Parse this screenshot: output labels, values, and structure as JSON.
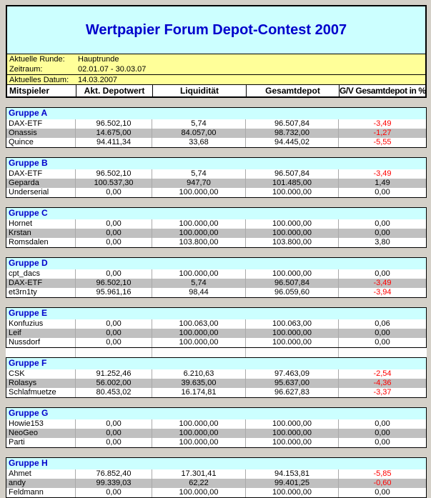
{
  "title": "Wertpapier Forum Depot-Contest 2007",
  "info": {
    "round_label": "Aktuelle Runde:",
    "round_value": "Hauptrunde",
    "period_label": "Zeitraum:",
    "period_value": "02.01.07 - 30.03.07",
    "date_label": "Aktuelles Datum:",
    "date_value": "14.03.2007"
  },
  "columns": [
    "Mitspieler",
    "Akt. Depotwert",
    "Liquidität",
    "Gesamtdepot",
    "G/V Gesamtdepot in %"
  ],
  "colors": {
    "title_blue": "#0000CC",
    "header_cyan": "#CCFFFF",
    "info_yellow": "#FFFF99",
    "stripe_silver": "#C0C0C0",
    "negative_red": "#FF0000",
    "page_gray": "#D4D0C8"
  },
  "groups": [
    {
      "name": "Gruppe A",
      "rows": [
        {
          "player": "DAX-ETF",
          "depotwert": "96.502,10",
          "liquiditaet": "5,74",
          "gesamtdepot": "96.507,84",
          "gv": "-3,49"
        },
        {
          "player": "Onassis",
          "depotwert": "14.675,00",
          "liquiditaet": "84.057,00",
          "gesamtdepot": "98.732,00",
          "gv": "-1,27"
        },
        {
          "player": "Quince",
          "depotwert": "94.411,34",
          "liquiditaet": "33,68",
          "gesamtdepot": "94.445,02",
          "gv": "-5,55"
        }
      ]
    },
    {
      "name": "Gruppe B",
      "rows": [
        {
          "player": "DAX-ETF",
          "depotwert": "96.502,10",
          "liquiditaet": "5,74",
          "gesamtdepot": "96.507,84",
          "gv": "-3,49"
        },
        {
          "player": "Geparda",
          "depotwert": "100.537,30",
          "liquiditaet": "947,70",
          "gesamtdepot": "101.485,00",
          "gv": "1,49"
        },
        {
          "player": "Underserial",
          "depotwert": "0,00",
          "liquiditaet": "100.000,00",
          "gesamtdepot": "100.000,00",
          "gv": "0,00"
        }
      ]
    },
    {
      "name": "Gruppe C",
      "rows": [
        {
          "player": "Hornet",
          "depotwert": "0,00",
          "liquiditaet": "100.000,00",
          "gesamtdepot": "100.000,00",
          "gv": "0,00"
        },
        {
          "player": "Krstan",
          "depotwert": "0,00",
          "liquiditaet": "100.000,00",
          "gesamtdepot": "100.000,00",
          "gv": "0,00"
        },
        {
          "player": "Romsdalen",
          "depotwert": "0,00",
          "liquiditaet": "103.800,00",
          "gesamtdepot": "103.800,00",
          "gv": "3,80"
        }
      ]
    },
    {
      "name": "Gruppe D",
      "rows": [
        {
          "player": "cpt_dacs",
          "depotwert": "0,00",
          "liquiditaet": "100.000,00",
          "gesamtdepot": "100.000,00",
          "gv": "0,00"
        },
        {
          "player": "DAX-ETF",
          "depotwert": "96.502,10",
          "liquiditaet": "5,74",
          "gesamtdepot": "96.507,84",
          "gv": "-3,49"
        },
        {
          "player": "et3rn1ty",
          "depotwert": "95.961,16",
          "liquiditaet": "98,44",
          "gesamtdepot": "96.059,60",
          "gv": "-3,94"
        }
      ]
    },
    {
      "name": "Gruppe E",
      "rows": [
        {
          "player": "Konfuzius",
          "depotwert": "0,00",
          "liquiditaet": "100.063,00",
          "gesamtdepot": "100.063,00",
          "gv": "0,06"
        },
        {
          "player": "Leif",
          "depotwert": "0,00",
          "liquiditaet": "100.000,00",
          "gesamtdepot": "100.000,00",
          "gv": "0,00"
        },
        {
          "player": "Nussdorf",
          "depotwert": "0,00",
          "liquiditaet": "100.000,00",
          "gesamtdepot": "100.000,00",
          "gv": "0,00"
        }
      ]
    },
    {
      "name": "Gruppe F",
      "gap_lines_before": true,
      "rows": [
        {
          "player": "CSK",
          "depotwert": "91.252,46",
          "liquiditaet": "6.210,63",
          "gesamtdepot": "97.463,09",
          "gv": "-2,54"
        },
        {
          "player": "Rolasys",
          "depotwert": "56.002,00",
          "liquiditaet": "39.635,00",
          "gesamtdepot": "95.637,00",
          "gv": "-4,36"
        },
        {
          "player": "Schlafmuetze",
          "depotwert": "80.453,02",
          "liquiditaet": "16.174,81",
          "gesamtdepot": "96.627,83",
          "gv": "-3,37"
        }
      ]
    },
    {
      "name": "Gruppe G",
      "rows": [
        {
          "player": "Howie153",
          "depotwert": "0,00",
          "liquiditaet": "100.000,00",
          "gesamtdepot": "100.000,00",
          "gv": "0,00"
        },
        {
          "player": "NeoGeo",
          "depotwert": "0,00",
          "liquiditaet": "100.000,00",
          "gesamtdepot": "100.000,00",
          "gv": "0,00"
        },
        {
          "player": "Parti",
          "depotwert": "0,00",
          "liquiditaet": "100.000,00",
          "gesamtdepot": "100.000,00",
          "gv": "0,00"
        }
      ]
    },
    {
      "name": "Gruppe H",
      "rows": [
        {
          "player": "Ahmet",
          "depotwert": "76.852,40",
          "liquiditaet": "17.301,41",
          "gesamtdepot": "94.153,81",
          "gv": "-5,85"
        },
        {
          "player": "andy",
          "depotwert": "99.339,03",
          "liquiditaet": "62,22",
          "gesamtdepot": "99.401,25",
          "gv": "-0,60"
        },
        {
          "player": "Feldmann",
          "depotwert": "0,00",
          "liquiditaet": "100.000,00",
          "gesamtdepot": "100.000,00",
          "gv": "0,00"
        }
      ]
    }
  ]
}
